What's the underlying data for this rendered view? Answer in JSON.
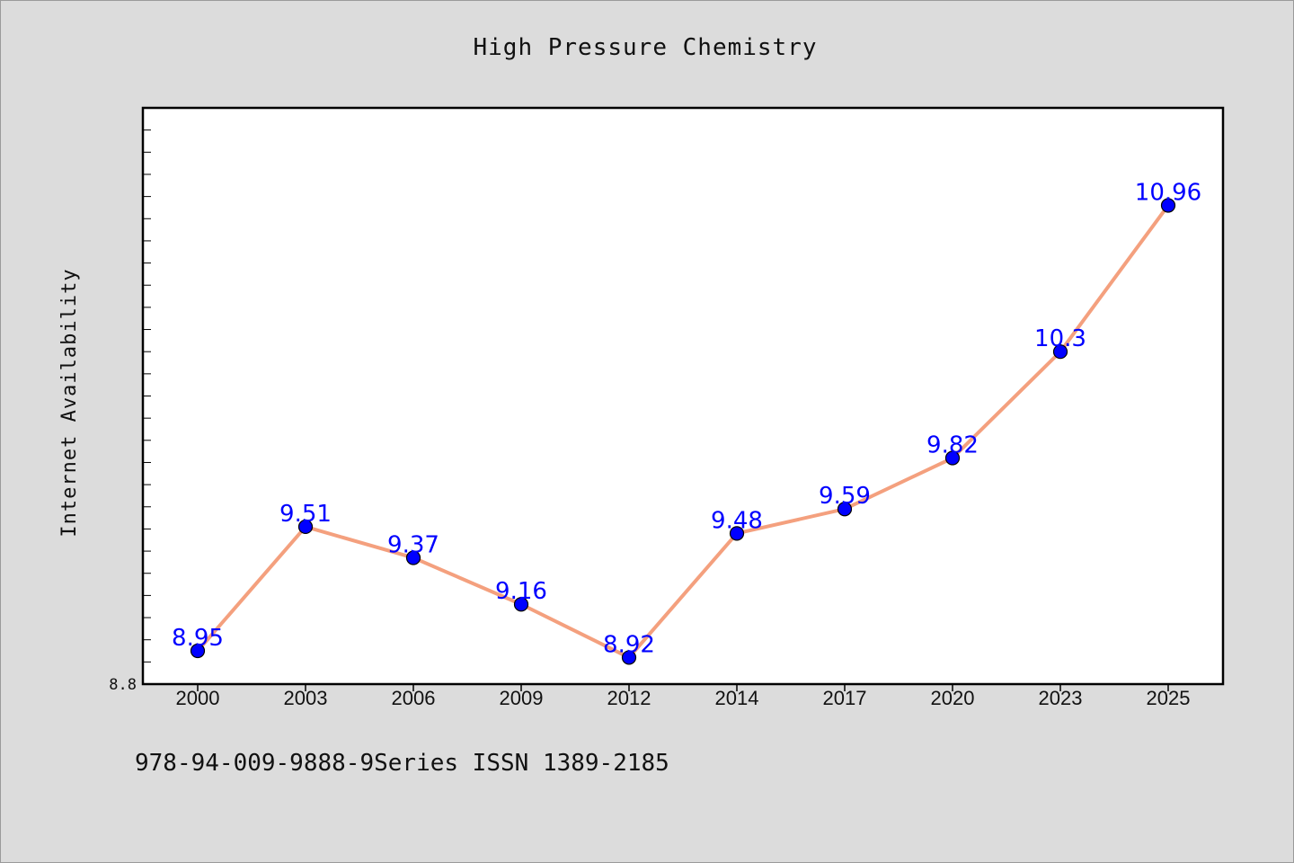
{
  "footer": {
    "text": "978-94-009-9888-9Series ISSN 1389-2185"
  },
  "colors": {
    "line": "#f4a07e",
    "marker": "#0000ff",
    "label": "#0000ff",
    "background": "#dcdcdc",
    "plot_bg": "#ffffff"
  },
  "chart_data": {
    "type": "line",
    "title": "High Pressure Chemistry",
    "xlabel": "",
    "ylabel": "Internet Availability",
    "categories": [
      "2000",
      "2003",
      "2006",
      "2009",
      "2012",
      "2014",
      "2017",
      "2020",
      "2023",
      "2025"
    ],
    "series": [
      {
        "values": [
          8.95,
          9.51,
          9.37,
          9.16,
          8.92,
          9.48,
          9.59,
          9.82,
          10.3,
          10.96
        ]
      }
    ],
    "data_labels": [
      "8.95",
      "9.51",
      "9.37",
      "9.16",
      "8.92",
      "9.48",
      "9.59",
      "9.82",
      "10.3",
      "10.96"
    ],
    "ylim": [
      8.8,
      11.4
    ],
    "y_tick_labels": [
      "8.8"
    ],
    "grid": false,
    "legend": "none"
  }
}
